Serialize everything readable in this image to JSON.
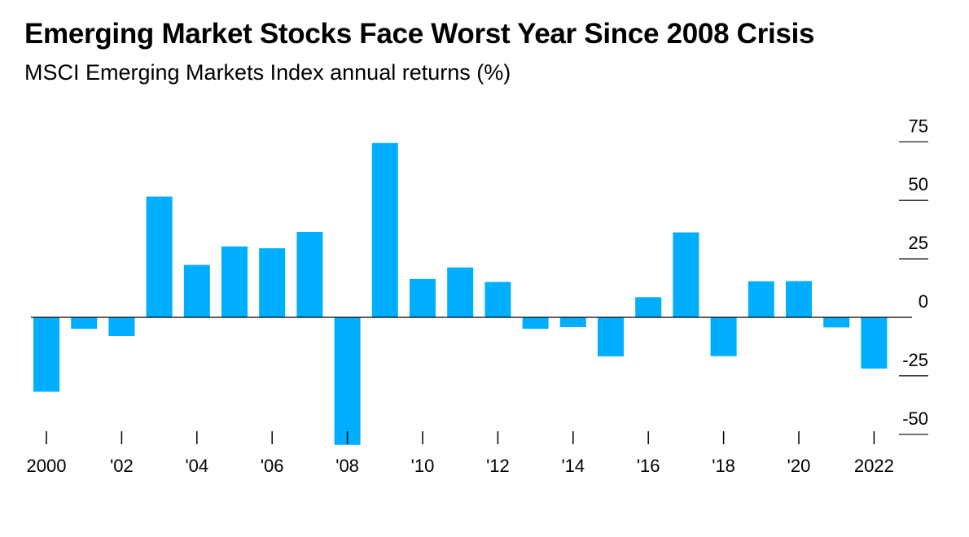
{
  "title": "Emerging Market Stocks Face Worst Year Since 2008 Crisis",
  "subtitle": "MSCI Emerging Markets Index annual returns (%)",
  "colors": {
    "bar": "#00AEFF",
    "axis": "#000000"
  },
  "chart_data": {
    "type": "bar",
    "title": "Emerging Market Stocks Face Worst Year Since 2008 Crisis",
    "subtitle": "MSCI Emerging Markets Index annual returns (%)",
    "x": [
      2000,
      2001,
      2002,
      2003,
      2004,
      2005,
      2006,
      2007,
      2008,
      2009,
      2010,
      2011,
      2012,
      2013,
      2014,
      2015,
      2016,
      2017,
      2018,
      2019,
      2020,
      2021,
      2022
    ],
    "values": [
      -31.8,
      -4.9,
      -8.0,
      51.6,
      22.4,
      30.3,
      29.5,
      36.5,
      -54.5,
      74.5,
      16.4,
      21.3,
      15.1,
      -4.9,
      -4.2,
      -16.7,
      8.6,
      36.3,
      -16.6,
      15.4,
      15.5,
      -4.3,
      -21.9
    ],
    "x_tick_labels": [
      {
        "x": 2000,
        "label": "2000"
      },
      {
        "x": 2002,
        "label": "'02"
      },
      {
        "x": 2004,
        "label": "'04"
      },
      {
        "x": 2006,
        "label": "'06"
      },
      {
        "x": 2008,
        "label": "'08"
      },
      {
        "x": 2010,
        "label": "'10"
      },
      {
        "x": 2012,
        "label": "'12"
      },
      {
        "x": 2014,
        "label": "'14"
      },
      {
        "x": 2016,
        "label": "'16"
      },
      {
        "x": 2018,
        "label": "'18"
      },
      {
        "x": 2020,
        "label": "'20"
      },
      {
        "x": 2022,
        "label": "2022"
      }
    ],
    "y_ticks": [
      75,
      50,
      25,
      0,
      -25,
      -50
    ],
    "y_tick_labels": [
      "75",
      "50",
      "25",
      "0",
      "-25",
      "-50"
    ],
    "ylim": [
      -54.5,
      75
    ],
    "y_axis_side": "right",
    "grid": false,
    "xlabel": "",
    "ylabel": ""
  }
}
